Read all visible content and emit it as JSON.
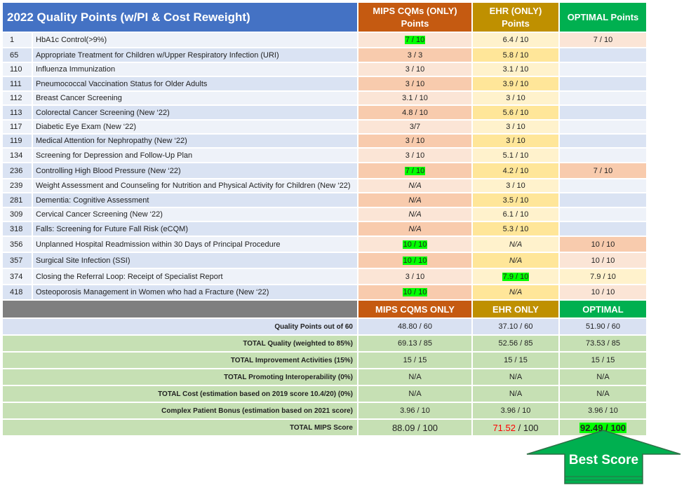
{
  "header": {
    "title": "2022 Quality Points (w/PI & Cost Reweight)",
    "mips": "MIPS CQMs (ONLY) Points",
    "ehr": "EHR (ONLY) Points",
    "optimal": "OPTIMAL Points"
  },
  "measures": [
    {
      "num": "1",
      "name": "HbA1c Control(>9%)",
      "mips": "7 / 10",
      "ehr": "6.4 / 10",
      "opt": "7 / 10"
    },
    {
      "num": "65",
      "name": "Appropriate Treatment for Children w/Upper Respiratory Infection (URI)",
      "mips": "3 / 3",
      "ehr": "5.8 / 10",
      "opt": ""
    },
    {
      "num": "110",
      "name": "Influenza Immunization",
      "mips": "3 / 10",
      "ehr": "3.1 / 10",
      "opt": ""
    },
    {
      "num": "111",
      "name": "Pneumococcal Vaccination Status for Older Adults",
      "mips": "3 / 10",
      "ehr": "3.9 / 10",
      "opt": ""
    },
    {
      "num": "112",
      "name": "Breast Cancer Screening",
      "mips": "3.1 / 10",
      "ehr": "3 / 10",
      "opt": ""
    },
    {
      "num": "113",
      "name": "Colorectal Cancer Screening (New ‘22)",
      "mips": "4.8 / 10",
      "ehr": "5.6 / 10",
      "opt": ""
    },
    {
      "num": "117",
      "name": "Diabetic Eye Exam (New ‘22)",
      "mips": "3/7",
      "ehr": "3 / 10",
      "opt": ""
    },
    {
      "num": "119",
      "name": "Medical Attention for Nephropathy (New ‘22)",
      "mips": "3 / 10",
      "ehr": "3 / 10",
      "opt": ""
    },
    {
      "num": "134",
      "name": "Screening for Depression and Follow-Up Plan",
      "mips": "3 / 10",
      "ehr": "5.1 / 10",
      "opt": ""
    },
    {
      "num": "236",
      "name": "Controlling High Blood Pressure (New ‘22)",
      "mips": "7 / 10",
      "ehr": "4.2 / 10",
      "opt": "7 / 10"
    },
    {
      "num": "239",
      "name": "Weight Assessment and Counseling for Nutrition and Physical Activity for Children (New ‘22)",
      "mips": "N/A",
      "ehr": "3 / 10",
      "opt": ""
    },
    {
      "num": "281",
      "name": "Dementia: Cognitive Assessment",
      "mips": "N/A",
      "ehr": "3.5 / 10",
      "opt": ""
    },
    {
      "num": "309",
      "name": "Cervical Cancer Screening (New ‘22)",
      "mips": "N/A",
      "ehr": "6.1 / 10",
      "opt": ""
    },
    {
      "num": "318",
      "name": "Falls: Screening for Future Fall Risk (eCQM)",
      "mips": "N/A",
      "ehr": "5.3 / 10",
      "opt": ""
    },
    {
      "num": "356",
      "name": "Unplanned Hospital Readmission within 30 Days of Principal Procedure",
      "mips": "10 / 10",
      "ehr": "N/A",
      "opt": "10 / 10"
    },
    {
      "num": "357",
      "name": "Surgical Site Infection (SSI)",
      "mips": "10 / 10",
      "ehr": "N/A",
      "opt": "10 / 10"
    },
    {
      "num": "374",
      "name": "Closing the Referral Loop: Receipt of Specialist Report",
      "mips": "3 / 10",
      "ehr": "7.9 / 10",
      "opt": "7.9 / 10"
    },
    {
      "num": "418",
      "name": "Osteoporosis Management in Women who had a Fracture (New ‘22)",
      "mips": "10 / 10",
      "ehr": "N/A",
      "opt": "10 / 10"
    }
  ],
  "summary_header": {
    "mips": "MIPS CQMS ONLY",
    "ehr": "EHR ONLY",
    "optimal": "OPTIMAL"
  },
  "totals": [
    {
      "label": "Quality Points out of 60",
      "mips": "48.80 / 60",
      "ehr": "37.10 / 60",
      "opt": "51.90 / 60"
    },
    {
      "label": "TOTAL Quality (weighted to 85%)",
      "mips": "69.13 / 85",
      "ehr": "52.56 / 85",
      "opt": "73.53 / 85"
    },
    {
      "label": "TOTAL Improvement Activities (15%)",
      "mips": "15 / 15",
      "ehr": "15 / 15",
      "opt": "15 / 15"
    },
    {
      "label": "TOTAL Promoting Interoperability (0%)",
      "mips": "N/A",
      "ehr": "N/A",
      "opt": "N/A"
    },
    {
      "label": "TOTAL Cost (estimation based on 2019 score 10.4/20) (0%)",
      "mips": "N/A",
      "ehr": "N/A",
      "opt": "N/A"
    },
    {
      "label": "Complex Patient Bonus (estimation based on 2021 score)",
      "mips": "3.96 / 10",
      "ehr": "3.96 / 10",
      "opt": "3.96 / 10"
    }
  ],
  "final": {
    "label": "TOTAL MIPS Score",
    "mips_score": "88.09",
    "mips_max": " / 100",
    "ehr_score": "71.52",
    "ehr_max": " / 100",
    "opt_score": "92.49 / 100"
  },
  "callout": {
    "label": "Best Score"
  },
  "colors": {
    "title_blue": "#4472c4",
    "mips_orange": "#c55a11",
    "ehr_gold": "#bf9000",
    "optimal_green": "#00b050",
    "highlight": "#00ff00",
    "ehr_red": "#ff0000"
  }
}
